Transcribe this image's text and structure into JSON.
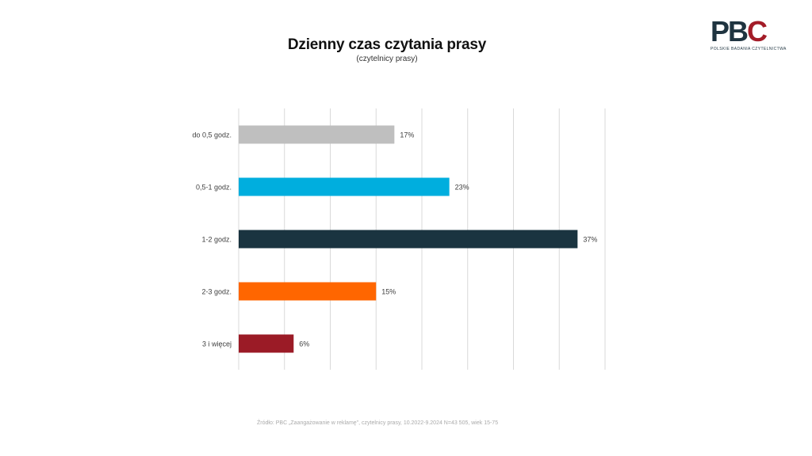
{
  "logo": {
    "text_p": "P",
    "text_b": "B",
    "text_c": "C",
    "subtitle": "POLSKIE BADANIA CZYTELNICTWA",
    "colors": {
      "dark": "#1f3440",
      "red": "#a31c28"
    }
  },
  "chart_data": {
    "type": "bar",
    "orientation": "horizontal",
    "title": "Dzienny czas czytania prasy",
    "subtitle": "(czytelnicy prasy)",
    "categories": [
      "do 0,5 godz.",
      "0,5-1 godz.",
      "1-2 godz.",
      "2-3 godz.",
      "3 i więcej"
    ],
    "values": [
      17,
      23,
      37,
      15,
      6
    ],
    "value_labels": [
      "17%",
      "23%",
      "37%",
      "15%",
      "6%"
    ],
    "colors": [
      "#bfbfbf",
      "#00aede",
      "#1a3440",
      "#ff6600",
      "#9b1b26"
    ],
    "xlim": [
      0,
      40
    ],
    "grid": true,
    "legend": false
  },
  "footnote": "Źródło: PBC „Zaangażowanie w reklamę\", czytelnicy prasy, 10.2022-9.2024 N=43 505, wiek 15-75"
}
